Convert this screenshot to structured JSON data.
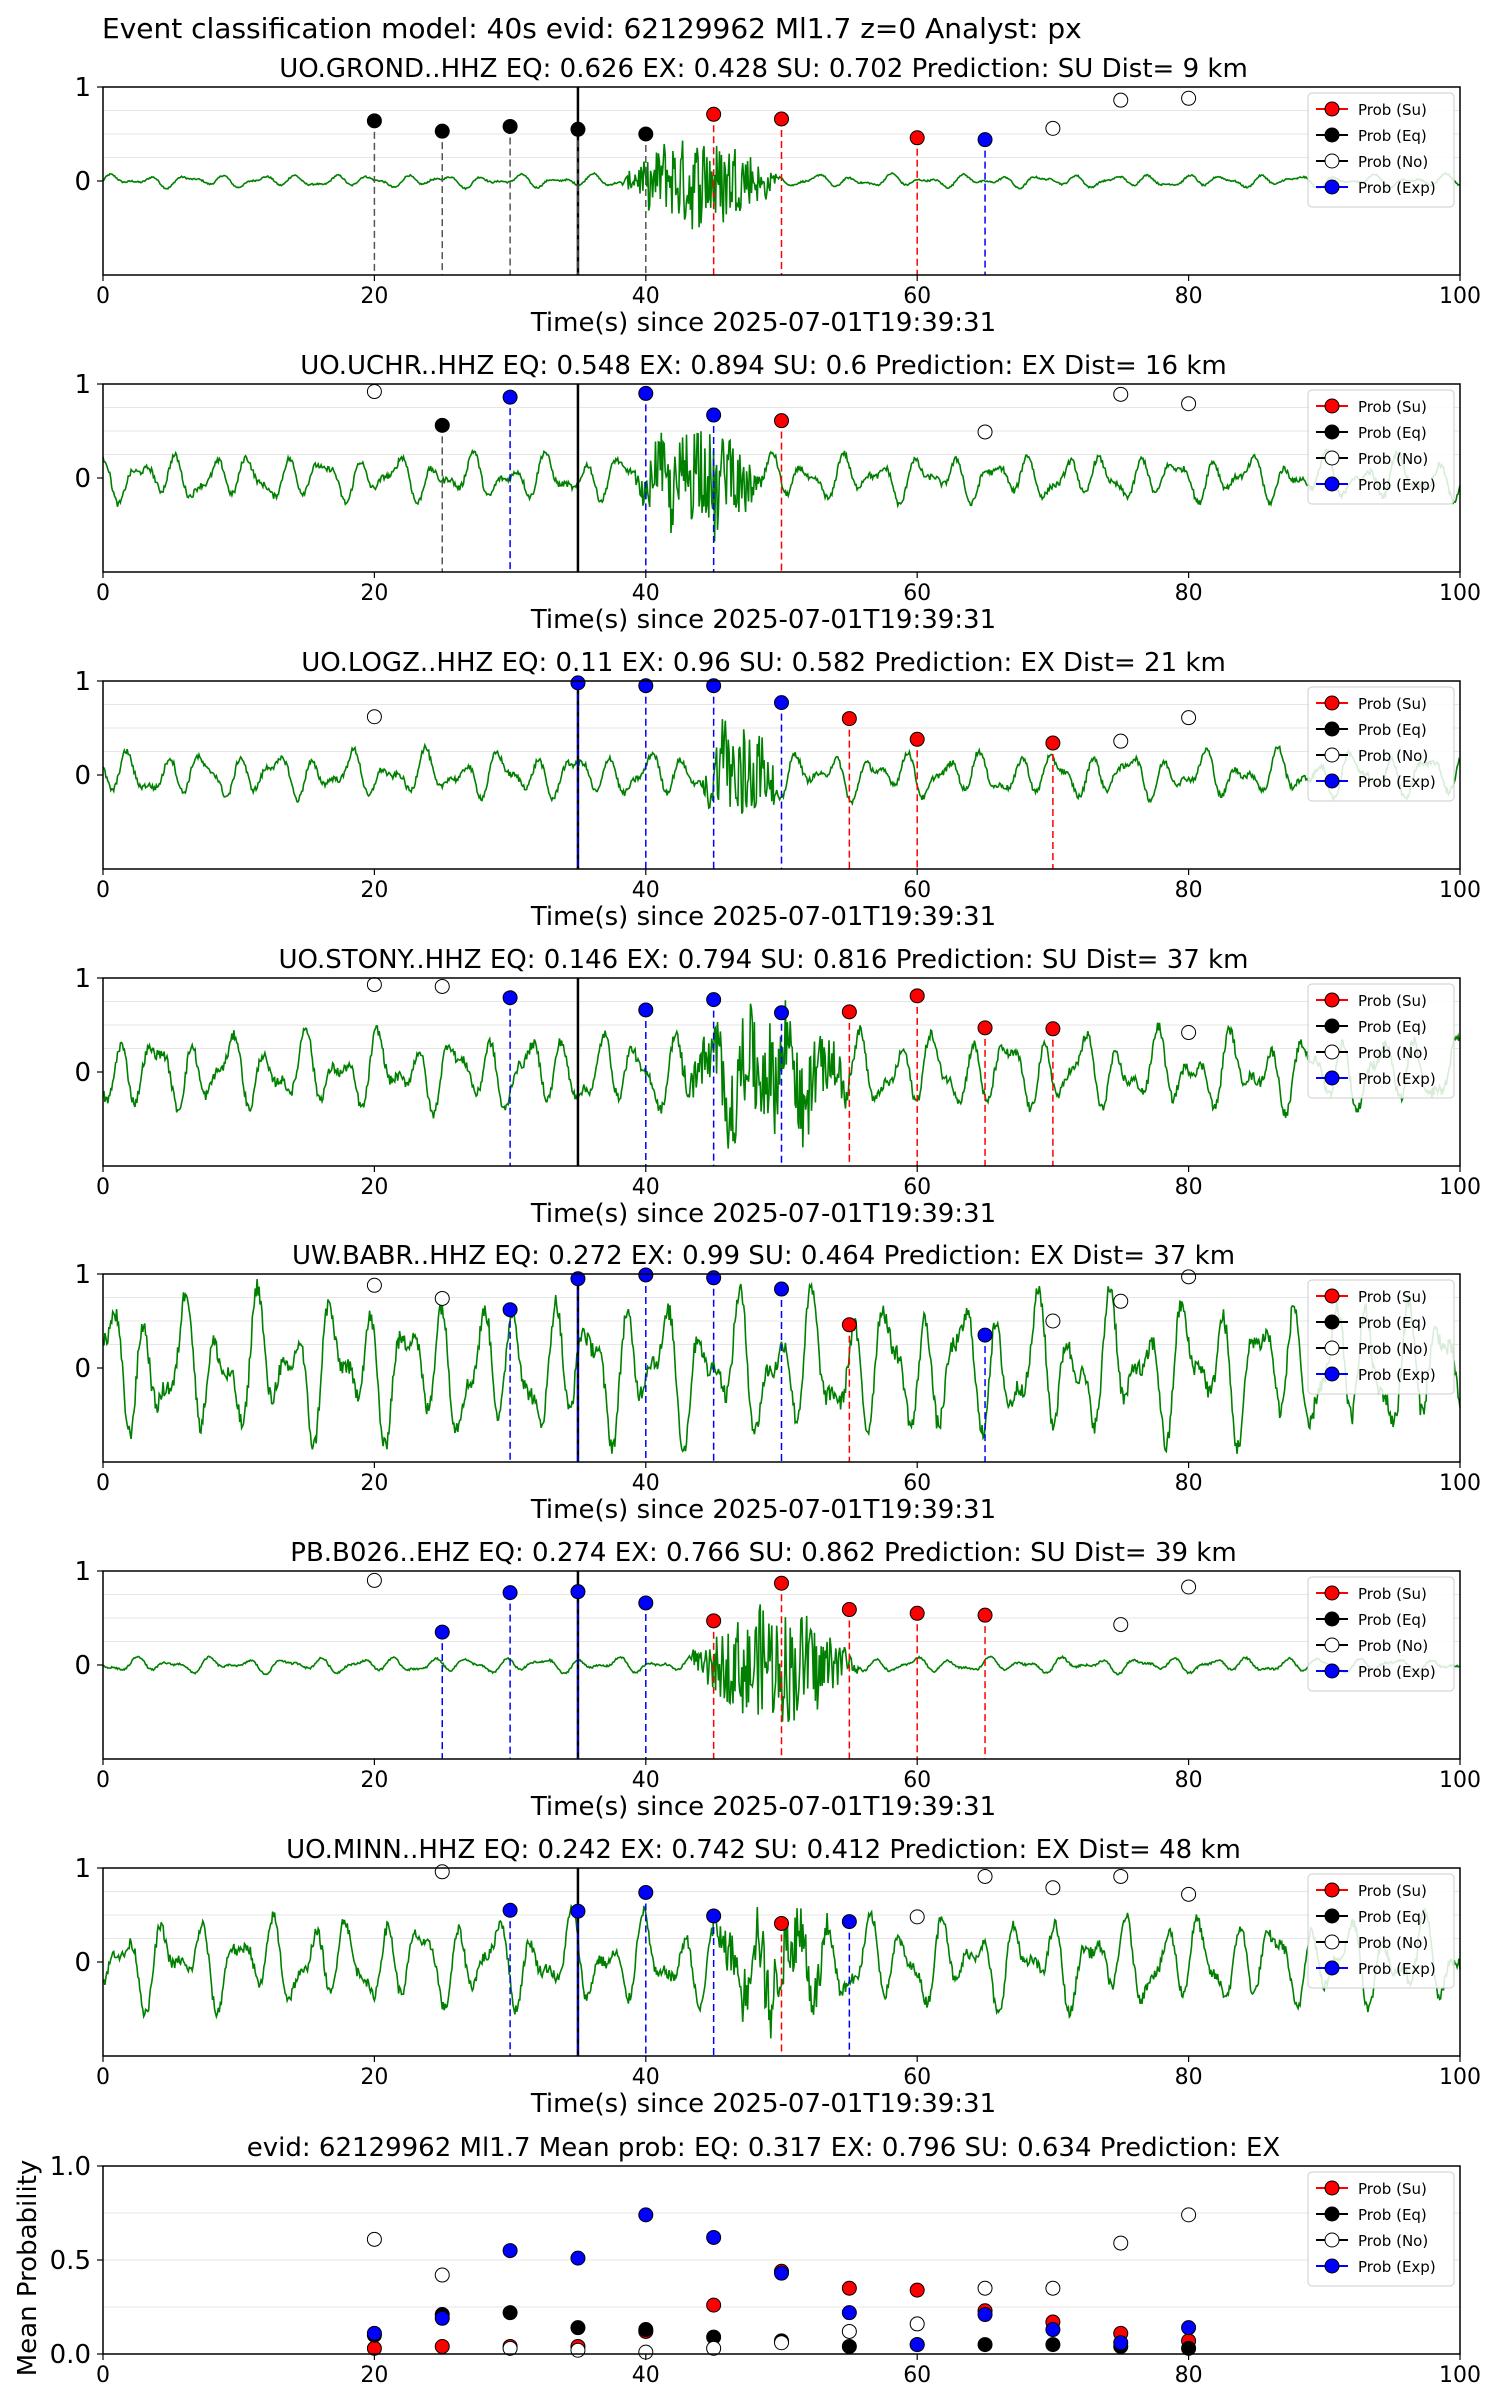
{
  "figure_title": "Event classification model: 40s evid: 62129962 Ml1.7 z=0 Analyst: px",
  "xlabel": "Time(s) since 2025-07-01T19:39:31",
  "x_ticks": [
    "0",
    "20",
    "40",
    "60",
    "80",
    "100"
  ],
  "legend": [
    "Prob (Su)",
    "Prob (Eq)",
    "Prob (No)",
    "Prob (Exp)"
  ],
  "colors": {
    "waveform": "#008000",
    "su": "#ff0000",
    "eq": "#000000",
    "no": "#ffffff",
    "exp": "#0000ff"
  },
  "chart_data": [
    {
      "type": "line",
      "station": "UO.GROND..HHZ",
      "title": "UO.GROND..HHZ   EQ: 0.626  EX: 0.428  SU: 0.702   Prediction: SU    Dist= 9 km",
      "xlim": [
        0,
        100
      ],
      "ylim": [
        -1,
        1
      ],
      "y_ticks": [
        "1",
        "0"
      ],
      "event_line": 35,
      "amp_base": 0.05,
      "bursts": [
        {
          "t0": 38,
          "t1": 50,
          "amp": 0.45
        }
      ],
      "points": [
        {
          "t": 20,
          "p": 0.64,
          "cls": "eq"
        },
        {
          "t": 25,
          "p": 0.53,
          "cls": "eq"
        },
        {
          "t": 30,
          "p": 0.58,
          "cls": "eq"
        },
        {
          "t": 35,
          "p": 0.55,
          "cls": "eq"
        },
        {
          "t": 40,
          "p": 0.5,
          "cls": "eq"
        },
        {
          "t": 45,
          "p": 0.71,
          "cls": "su"
        },
        {
          "t": 50,
          "p": 0.66,
          "cls": "su"
        },
        {
          "t": 60,
          "p": 0.46,
          "cls": "su"
        },
        {
          "t": 65,
          "p": 0.44,
          "cls": "exp"
        },
        {
          "t": 70,
          "p": 0.56,
          "cls": "no"
        },
        {
          "t": 75,
          "p": 0.86,
          "cls": "no"
        },
        {
          "t": 80,
          "p": 0.88,
          "cls": "no"
        }
      ]
    },
    {
      "type": "line",
      "station": "UO.UCHR..HHZ",
      "title": "UO.UCHR..HHZ   EQ: 0.548  EX: 0.894  SU: 0.6   Prediction: EX    Dist= 16 km",
      "xlim": [
        0,
        100
      ],
      "ylim": [
        -1,
        1
      ],
      "y_ticks": [
        "1",
        "0"
      ],
      "event_line": 35,
      "amp_base": 0.18,
      "bursts": [
        {
          "t0": 39,
          "t1": 49,
          "amp": 0.5
        }
      ],
      "points": [
        {
          "t": 20,
          "p": 0.92,
          "cls": "no"
        },
        {
          "t": 25,
          "p": 0.56,
          "cls": "eq"
        },
        {
          "t": 30,
          "p": 0.86,
          "cls": "exp"
        },
        {
          "t": 40,
          "p": 0.9,
          "cls": "exp"
        },
        {
          "t": 45,
          "p": 0.67,
          "cls": "exp"
        },
        {
          "t": 50,
          "p": 0.61,
          "cls": "su"
        },
        {
          "t": 65,
          "p": 0.49,
          "cls": "no"
        },
        {
          "t": 75,
          "p": 0.89,
          "cls": "no"
        },
        {
          "t": 80,
          "p": 0.79,
          "cls": "no"
        }
      ]
    },
    {
      "type": "line",
      "station": "UO.LOGZ..HHZ",
      "title": "UO.LOGZ..HHZ   EQ: 0.11  EX: 0.96  SU: 0.582   Prediction: EX    Dist= 21 km",
      "xlim": [
        0,
        100
      ],
      "ylim": [
        -1,
        1
      ],
      "y_ticks": [
        "1",
        "0"
      ],
      "event_line": 35,
      "amp_base": 0.18,
      "bursts": [
        {
          "t0": 44,
          "t1": 50,
          "amp": 0.55
        }
      ],
      "points": [
        {
          "t": 20,
          "p": 0.62,
          "cls": "no"
        },
        {
          "t": 35,
          "p": 0.98,
          "cls": "exp"
        },
        {
          "t": 40,
          "p": 0.95,
          "cls": "exp"
        },
        {
          "t": 45,
          "p": 0.95,
          "cls": "exp"
        },
        {
          "t": 50,
          "p": 0.77,
          "cls": "exp"
        },
        {
          "t": 55,
          "p": 0.6,
          "cls": "su"
        },
        {
          "t": 60,
          "p": 0.38,
          "cls": "su"
        },
        {
          "t": 70,
          "p": 0.34,
          "cls": "su"
        },
        {
          "t": 75,
          "p": 0.36,
          "cls": "no"
        },
        {
          "t": 80,
          "p": 0.61,
          "cls": "no"
        }
      ]
    },
    {
      "type": "line",
      "station": "UO.STONY..HHZ",
      "title": "UO.STONY..HHZ   EQ: 0.146  EX: 0.794  SU: 0.816   Prediction: SU    Dist= 37 km",
      "xlim": [
        0,
        100
      ],
      "ylim": [
        -1,
        1
      ],
      "y_ticks": [
        "1",
        "0"
      ],
      "event_line": 35,
      "amp_base": 0.3,
      "bursts": [
        {
          "t0": 42,
          "t1": 56,
          "amp": 0.5
        }
      ],
      "points": [
        {
          "t": 20,
          "p": 0.93,
          "cls": "no"
        },
        {
          "t": 25,
          "p": 0.91,
          "cls": "no"
        },
        {
          "t": 30,
          "p": 0.79,
          "cls": "exp"
        },
        {
          "t": 40,
          "p": 0.66,
          "cls": "exp"
        },
        {
          "t": 45,
          "p": 0.77,
          "cls": "exp"
        },
        {
          "t": 50,
          "p": 0.63,
          "cls": "exp"
        },
        {
          "t": 55,
          "p": 0.64,
          "cls": "su"
        },
        {
          "t": 60,
          "p": 0.81,
          "cls": "su"
        },
        {
          "t": 65,
          "p": 0.47,
          "cls": "su"
        },
        {
          "t": 70,
          "p": 0.46,
          "cls": "su"
        },
        {
          "t": 80,
          "p": 0.42,
          "cls": "no"
        }
      ]
    },
    {
      "type": "line",
      "station": "UW.BABR..HHZ",
      "title": "UW.BABR..HHZ   EQ: 0.272  EX: 0.99  SU: 0.464   Prediction: EX    Dist= 37 km",
      "xlim": [
        0,
        100
      ],
      "ylim": [
        -1,
        1
      ],
      "y_ticks": [
        "1",
        "0"
      ],
      "event_line": 35,
      "amp_base": 0.55,
      "bursts": [],
      "points": [
        {
          "t": 20,
          "p": 0.88,
          "cls": "no"
        },
        {
          "t": 25,
          "p": 0.74,
          "cls": "no"
        },
        {
          "t": 30,
          "p": 0.62,
          "cls": "exp"
        },
        {
          "t": 35,
          "p": 0.95,
          "cls": "exp"
        },
        {
          "t": 40,
          "p": 0.99,
          "cls": "exp"
        },
        {
          "t": 45,
          "p": 0.96,
          "cls": "exp"
        },
        {
          "t": 50,
          "p": 0.84,
          "cls": "exp"
        },
        {
          "t": 55,
          "p": 0.46,
          "cls": "su"
        },
        {
          "t": 65,
          "p": 0.35,
          "cls": "exp"
        },
        {
          "t": 70,
          "p": 0.5,
          "cls": "no"
        },
        {
          "t": 75,
          "p": 0.71,
          "cls": "no"
        },
        {
          "t": 80,
          "p": 0.97,
          "cls": "no"
        }
      ]
    },
    {
      "type": "line",
      "station": "PB.B026..EHZ",
      "title": "PB.B026..EHZ   EQ: 0.274  EX: 0.766  SU: 0.862   Prediction: SU    Dist= 39 km",
      "xlim": [
        0,
        100
      ],
      "ylim": [
        -1,
        1
      ],
      "y_ticks": [
        "1",
        "0"
      ],
      "event_line": 35,
      "amp_base": 0.06,
      "bursts": [
        {
          "t0": 43,
          "t1": 56,
          "amp": 0.55
        }
      ],
      "points": [
        {
          "t": 20,
          "p": 0.9,
          "cls": "no"
        },
        {
          "t": 25,
          "p": 0.35,
          "cls": "exp"
        },
        {
          "t": 30,
          "p": 0.77,
          "cls": "exp"
        },
        {
          "t": 35,
          "p": 0.78,
          "cls": "exp"
        },
        {
          "t": 40,
          "p": 0.66,
          "cls": "exp"
        },
        {
          "t": 45,
          "p": 0.47,
          "cls": "su"
        },
        {
          "t": 50,
          "p": 0.87,
          "cls": "su"
        },
        {
          "t": 55,
          "p": 0.59,
          "cls": "su"
        },
        {
          "t": 60,
          "p": 0.55,
          "cls": "su"
        },
        {
          "t": 65,
          "p": 0.53,
          "cls": "su"
        },
        {
          "t": 75,
          "p": 0.43,
          "cls": "no"
        },
        {
          "t": 80,
          "p": 0.83,
          "cls": "no"
        }
      ]
    },
    {
      "type": "line",
      "station": "UO.MINN..HHZ",
      "title": "UO.MINN..HHZ   EQ: 0.242  EX: 0.742  SU: 0.412   Prediction: EX    Dist= 48 km",
      "xlim": [
        0,
        100
      ],
      "ylim": [
        -1,
        1
      ],
      "y_ticks": [
        "1",
        "0"
      ],
      "event_line": 35,
      "amp_base": 0.35,
      "bursts": [
        {
          "t0": 44,
          "t1": 55,
          "amp": 0.35
        }
      ],
      "points": [
        {
          "t": 25,
          "p": 0.96,
          "cls": "no"
        },
        {
          "t": 30,
          "p": 0.55,
          "cls": "exp"
        },
        {
          "t": 35,
          "p": 0.54,
          "cls": "exp"
        },
        {
          "t": 40,
          "p": 0.74,
          "cls": "exp"
        },
        {
          "t": 45,
          "p": 0.49,
          "cls": "exp"
        },
        {
          "t": 50,
          "p": 0.41,
          "cls": "su"
        },
        {
          "t": 55,
          "p": 0.43,
          "cls": "exp"
        },
        {
          "t": 60,
          "p": 0.48,
          "cls": "no"
        },
        {
          "t": 65,
          "p": 0.91,
          "cls": "no"
        },
        {
          "t": 70,
          "p": 0.79,
          "cls": "no"
        },
        {
          "t": 75,
          "p": 0.91,
          "cls": "no"
        },
        {
          "t": 80,
          "p": 0.72,
          "cls": "no"
        }
      ]
    },
    {
      "type": "scatter",
      "station": "mean",
      "title": "evid: 62129962  Ml1.7   Mean prob:   EQ: 0.317  EX: 0.796  SU: 0.634   Prediction: EX",
      "ylabel": "Mean Probability",
      "xlim": [
        0,
        100
      ],
      "ylim": [
        0,
        1
      ],
      "y_ticks": [
        "1.0",
        "0.5",
        "0.0"
      ],
      "x": [
        20,
        25,
        30,
        35,
        40,
        45,
        50,
        55,
        60,
        65,
        70,
        75,
        80
      ],
      "series": [
        {
          "name": "Prob (Su)",
          "cls": "su",
          "values": [
            0.03,
            0.04,
            0.04,
            0.04,
            0.12,
            0.26,
            0.44,
            0.35,
            0.34,
            0.23,
            0.17,
            0.11,
            0.07
          ]
        },
        {
          "name": "Prob (Eq)",
          "cls": "eq",
          "values": [
            0.1,
            0.21,
            0.22,
            0.14,
            0.13,
            0.09,
            0.07,
            0.04,
            0.05,
            0.05,
            0.05,
            0.04,
            0.03
          ]
        },
        {
          "name": "Prob (No)",
          "cls": "no",
          "values": [
            0.61,
            0.42,
            0.03,
            0.02,
            0.01,
            0.03,
            0.06,
            0.12,
            0.16,
            0.35,
            0.35,
            0.59,
            0.74
          ]
        },
        {
          "name": "Prob (Exp)",
          "cls": "exp",
          "values": [
            0.11,
            0.19,
            0.55,
            0.51,
            0.74,
            0.62,
            0.43,
            0.22,
            0.05,
            0.21,
            0.13,
            0.06,
            0.14
          ]
        }
      ]
    }
  ]
}
